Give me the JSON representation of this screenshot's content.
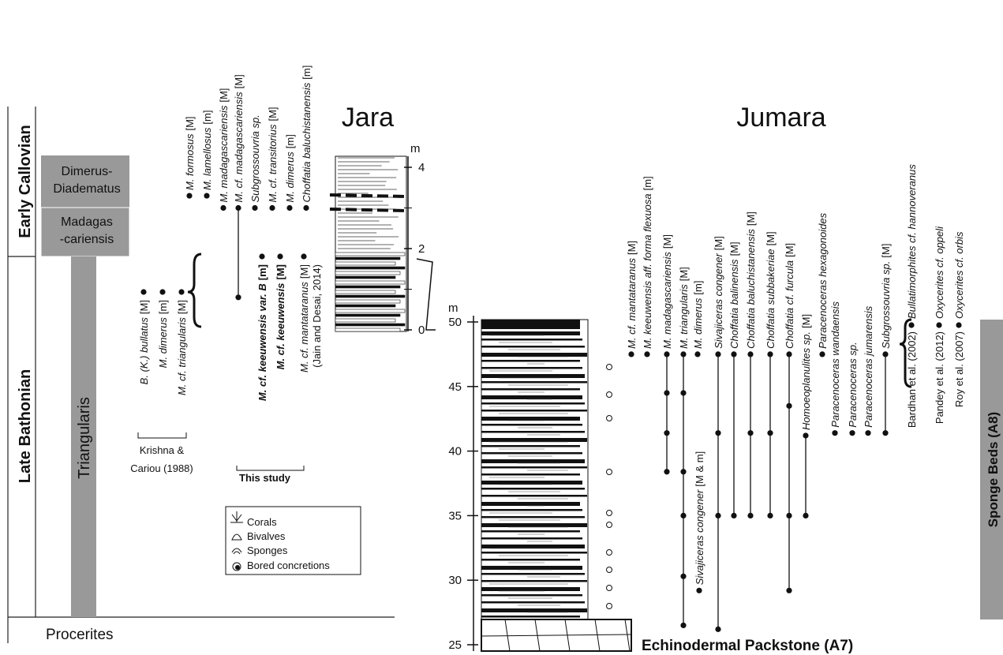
{
  "stages": {
    "early_callovian": "Early Callovian",
    "late_bathonian": "Late Bathonian"
  },
  "zones": {
    "dimerus": [
      "Dimerus-",
      "Diadematus"
    ],
    "madagascariensis": [
      "Madagas",
      "-cariensis"
    ],
    "triangularis": "Triangularis",
    "procerites": "Procerites"
  },
  "jara": {
    "title": "Jara",
    "scale": {
      "unit": "m",
      "ticks": [
        0,
        2,
        4
      ],
      "minor_ticks": [
        1,
        3
      ]
    },
    "taxa": [
      {
        "name": "M. formosus",
        "tag": "[M]",
        "levels": [
          3.3
        ]
      },
      {
        "name": "M. lamellosus",
        "tag": "[m]",
        "levels": [
          3.3
        ]
      },
      {
        "name": "M. madagascariensis",
        "tag": "[M]",
        "levels": [
          3.0
        ]
      },
      {
        "name": "M. cf. madagascariensis",
        "tag": "[M]",
        "levels": [
          3.0,
          0.8
        ]
      },
      {
        "name": "Subgrossouvria sp.",
        "levels": [
          3.0
        ]
      },
      {
        "name": "M. cf. transitorius",
        "tag": "[M]",
        "levels": [
          3.0
        ]
      },
      {
        "name": "M. dimerus",
        "tag": "[m]",
        "levels": [
          3.0
        ]
      },
      {
        "name": "Choffatia baluchistanensis",
        "tag": "[m]",
        "levels": [
          3.0
        ]
      }
    ],
    "krishna": {
      "reference": [
        "Krishna &",
        "Cariou (1988)"
      ],
      "taxa": [
        {
          "name": "B. (K.) bullatus",
          "tag": "[M]"
        },
        {
          "name": "M. dimerus",
          "tag": "[m]"
        },
        {
          "name": "M. cf. triangularis",
          "tag": "[M]"
        }
      ]
    },
    "this_study": {
      "label": "This study",
      "taxa": [
        {
          "name": "M. cf. keeuwensis var. B",
          "tag": "[m]"
        },
        {
          "name": "M. cf. keeuwensis",
          "tag": "[M]"
        },
        {
          "name": "M. cf. mantataranus",
          "tag": "[M]",
          "note": "(Jain and Desai, 2014)"
        }
      ]
    }
  },
  "jumara": {
    "title": "Jumara",
    "scale": {
      "unit": "m",
      "ticks": [
        25,
        30,
        35,
        40,
        45,
        50
      ]
    },
    "taxa": [
      {
        "name": "M. cf. mantataranus",
        "tag": "[M]",
        "levels": [
          47.5
        ]
      },
      {
        "name": "M. keeuwensis aff. forma flexuosa",
        "tag": "[m]",
        "levels": [
          47.5
        ]
      },
      {
        "name": "M. madagascariensis",
        "tag": "[M]",
        "levels": [
          47.5,
          44.5,
          41.4,
          38.4
        ]
      },
      {
        "name": "M. triangularis",
        "tag": "[M]",
        "levels": [
          47.5,
          44.5,
          38.4,
          35.0,
          30.3,
          26.5
        ]
      },
      {
        "name": "M. dimerus",
        "tag": "[m]",
        "levels": [
          47.5
        ]
      },
      {
        "name": "Sivajiceras congener",
        "tag": "[M & m]",
        "levels": [
          29.2
        ]
      },
      {
        "name": "Sivajiceras congener",
        "tag": "[M]",
        "levels": [
          47.5,
          41.4,
          35.0,
          26.2
        ]
      },
      {
        "name": "Choffatia balinensis",
        "tag": "[M]",
        "levels": [
          47.5,
          35.0
        ]
      },
      {
        "name": "Choffatia baluchistanensis",
        "tag": "[M]",
        "levels": [
          47.5,
          41.4,
          35.0
        ]
      },
      {
        "name": "Choffatia subbakeriae",
        "tag": "[M]",
        "levels": [
          47.5,
          41.4,
          35.0
        ]
      },
      {
        "name": "Choffatia cf. furcula",
        "tag": "[M]",
        "levels": [
          47.5,
          43.5,
          35.0,
          29.2
        ]
      },
      {
        "name": "Homoeoplanulites sp.",
        "tag": "[M]",
        "levels": [
          41.2,
          35.0
        ]
      },
      {
        "name": "Paracenoceras hexagonoides",
        "levels": [
          47.5
        ]
      },
      {
        "name": "Paracenoceras wandaensis",
        "levels": [
          41.4
        ]
      },
      {
        "name": "Paracenoceras sp.",
        "levels": [
          41.4
        ]
      },
      {
        "name": "Paracenoceras jumarensis",
        "levels": [
          41.4
        ]
      },
      {
        "name": "Subgrossouvria sp.",
        "tag": "[M]",
        "levels": [
          47.5,
          41.4
        ]
      }
    ],
    "references": [
      {
        "ref": "Bardhan et al. (2002)",
        "name": "Bullatimorphites cf. hannoveranus"
      },
      {
        "ref": "Pandey et al. (2012)",
        "name": "Oxycerites cf. oppeli"
      },
      {
        "ref": "Roy et al. (2007)",
        "name": "Oxycerites cf. orbis"
      }
    ],
    "units": {
      "sponge_beds": "Sponge Beds (A8)",
      "packstone": "Echinodermal Packstone (A7)"
    }
  },
  "legend": [
    "Corals",
    "Bivalves",
    "Sponges",
    "Bored concretions"
  ]
}
